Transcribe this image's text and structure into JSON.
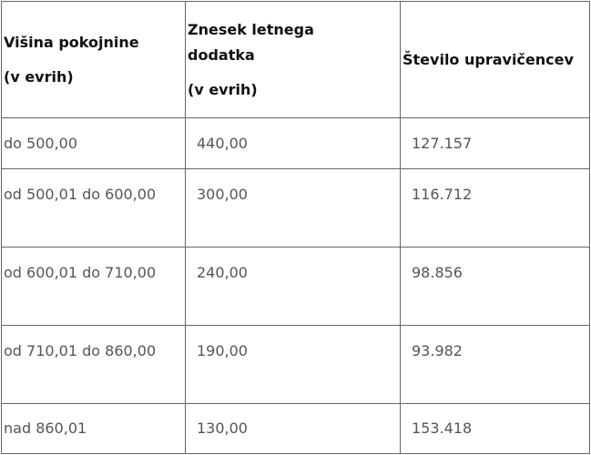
{
  "table": {
    "headers": [
      {
        "line1": "Višina pokojnine",
        "line2": "(v evrih)"
      },
      {
        "line1": "Znesek letnega",
        "line1b": "dodatka",
        "line2": "(v evrih)"
      },
      {
        "line1": "Število upravičencev"
      }
    ],
    "rows": [
      {
        "range": "do 500,00",
        "amount": "440,00",
        "count": "127.157"
      },
      {
        "range": "od 500,01 do 600,00",
        "amount": "300,00",
        "count": "116.712"
      },
      {
        "range": "od 600,01 do 710,00",
        "amount": "240,00",
        "count": "98.856"
      },
      {
        "range": "od 710,01 do 860,00",
        "amount": "190,00",
        "count": "93.982"
      },
      {
        "range": "nad 860,01",
        "amount": "130,00",
        "count": "153.418"
      }
    ]
  }
}
